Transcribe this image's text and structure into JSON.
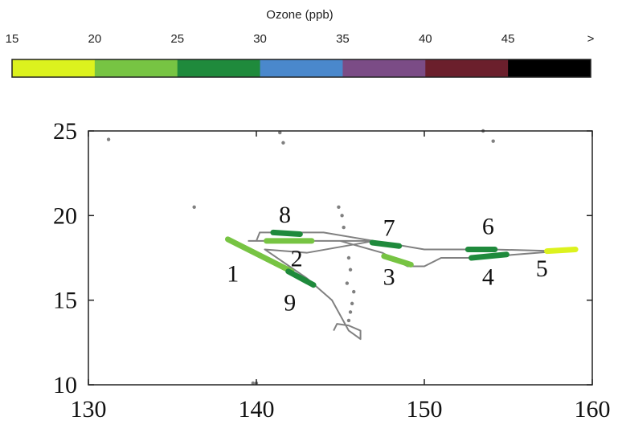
{
  "colorbar": {
    "title": "Ozone (ppb)",
    "tick_labels": [
      "15",
      "20",
      "25",
      "30",
      "35",
      "40",
      "45",
      ">"
    ],
    "bins": [
      {
        "range": "15-20",
        "color": "#dcf21e"
      },
      {
        "range": "20-25",
        "color": "#77c443"
      },
      {
        "range": "25-30",
        "color": "#1f8a3c"
      },
      {
        "range": "30-35",
        "color": "#4a88cc"
      },
      {
        "range": "35-40",
        "color": "#7b4c86"
      },
      {
        "range": "40-45",
        "color": "#6b1f2c"
      },
      {
        "range": ">45",
        "color": "#000000"
      }
    ]
  },
  "chart_data": {
    "type": "line",
    "title": "",
    "xlabel": "",
    "ylabel": "",
    "xlim": [
      130,
      160
    ],
    "ylim": [
      10,
      25
    ],
    "xticks": [
      "130",
      "140",
      "150",
      "160"
    ],
    "yticks": [
      "10",
      "15",
      "20",
      "25"
    ],
    "grid": false,
    "track_color": "#808080",
    "track": [
      [
        139.5,
        18.5
      ],
      [
        147,
        18.5
      ],
      [
        150,
        18
      ],
      [
        154,
        18
      ],
      [
        158,
        17.9
      ],
      [
        153,
        17.5
      ],
      [
        151,
        17.5
      ],
      [
        150,
        17
      ],
      [
        149,
        17
      ],
      [
        147.5,
        17.8
      ],
      [
        145,
        18.5
      ],
      [
        140,
        18.5
      ],
      [
        140.2,
        19
      ],
      [
        144,
        19
      ],
      [
        147,
        18.5
      ],
      [
        143,
        17.8
      ],
      [
        140.5,
        18
      ],
      [
        143,
        16.3
      ],
      [
        144.5,
        15
      ],
      [
        145.5,
        13.2
      ],
      [
        146.2,
        12.7
      ],
      [
        146.2,
        13.2
      ],
      [
        145.5,
        13.5
      ],
      [
        144.8,
        13.6
      ],
      [
        144.6,
        13.2
      ]
    ],
    "scattered_points": [
      [
        131.2,
        24.5
      ],
      [
        136.3,
        20.5
      ],
      [
        141.4,
        24.9
      ],
      [
        141.6,
        24.3
      ],
      [
        153.5,
        25
      ],
      [
        154.1,
        24.4
      ],
      [
        144.9,
        20.5
      ],
      [
        145.1,
        20
      ],
      [
        145.2,
        19.3
      ],
      [
        145.5,
        17.5
      ],
      [
        145.6,
        16.8
      ],
      [
        145.4,
        16
      ],
      [
        145.8,
        15.5
      ],
      [
        145.7,
        14.8
      ],
      [
        145.6,
        14.3
      ],
      [
        145.5,
        13.8
      ],
      [
        140,
        10.1
      ],
      [
        139.8,
        10.1
      ]
    ],
    "segments": [
      {
        "label": "1",
        "color": "#77c443",
        "points": [
          [
            138.3,
            18.6
          ],
          [
            142.1,
            16.7
          ]
        ]
      },
      {
        "label": "2",
        "color": "#77c443",
        "points": [
          [
            140.6,
            18.5
          ],
          [
            143.3,
            18.5
          ]
        ]
      },
      {
        "label": "3",
        "color": "#77c443",
        "points": [
          [
            147.6,
            17.6
          ],
          [
            149.2,
            17.1
          ]
        ]
      },
      {
        "label": "4",
        "color": "#1f8a3c",
        "points": [
          [
            152.8,
            17.5
          ],
          [
            154.9,
            17.7
          ]
        ]
      },
      {
        "label": "5",
        "color": "#dcf21e",
        "points": [
          [
            157.3,
            17.9
          ],
          [
            159,
            18
          ]
        ]
      },
      {
        "label": "6",
        "color": "#1f8a3c",
        "points": [
          [
            152.6,
            18
          ],
          [
            154.2,
            18
          ]
        ]
      },
      {
        "label": "7",
        "color": "#1f8a3c",
        "points": [
          [
            146.9,
            18.4
          ],
          [
            148.5,
            18.2
          ]
        ]
      },
      {
        "label": "8",
        "color": "#1f8a3c",
        "points": [
          [
            141,
            19
          ],
          [
            142.6,
            18.9
          ]
        ]
      },
      {
        "label": "9",
        "color": "#1f8a3c",
        "points": [
          [
            141.9,
            16.7
          ],
          [
            143.4,
            15.9
          ]
        ]
      }
    ],
    "segment_labels": [
      {
        "text": "1",
        "x": 138.6,
        "y": 16.1
      },
      {
        "text": "2",
        "x": 142.4,
        "y": 17.0
      },
      {
        "text": "3",
        "x": 147.9,
        "y": 15.9
      },
      {
        "text": "4",
        "x": 153.8,
        "y": 15.9
      },
      {
        "text": "5",
        "x": 157.0,
        "y": 16.4
      },
      {
        "text": "6",
        "x": 153.8,
        "y": 18.9
      },
      {
        "text": "7",
        "x": 147.9,
        "y": 18.8
      },
      {
        "text": "8",
        "x": 141.7,
        "y": 19.6
      },
      {
        "text": "9",
        "x": 142.0,
        "y": 14.4
      }
    ]
  }
}
